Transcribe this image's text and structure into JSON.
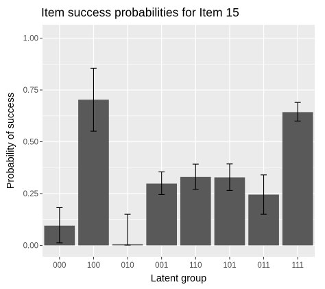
{
  "chart_data": {
    "type": "bar",
    "title": "Item success probabilities for Item 15",
    "xlabel": "Latent group",
    "ylabel": "Probability of success",
    "categories": [
      "000",
      "100",
      "010",
      "001",
      "110",
      "101",
      "011",
      "111"
    ],
    "values": [
      0.095,
      0.703,
      0.005,
      0.298,
      0.33,
      0.328,
      0.245,
      0.643
    ],
    "error_low": [
      0.012,
      0.551,
      0.001,
      0.245,
      0.27,
      0.265,
      0.15,
      0.6
    ],
    "error_high": [
      0.182,
      0.855,
      0.15,
      0.355,
      0.392,
      0.393,
      0.34,
      0.69
    ],
    "ylim": [
      -0.055,
      1.065
    ],
    "yticks": [
      0,
      0.25,
      0.5,
      0.75,
      1
    ],
    "ytick_labels": [
      "0.00",
      "0.25",
      "0.50",
      "0.75",
      "1.00"
    ],
    "grid": true,
    "legend": "none",
    "colors": {
      "bar": "#595959",
      "panel": "#ebebeb",
      "grid_major": "#ffffff",
      "errorbar": "#000000",
      "tick_text": "#4d4d4d"
    }
  }
}
